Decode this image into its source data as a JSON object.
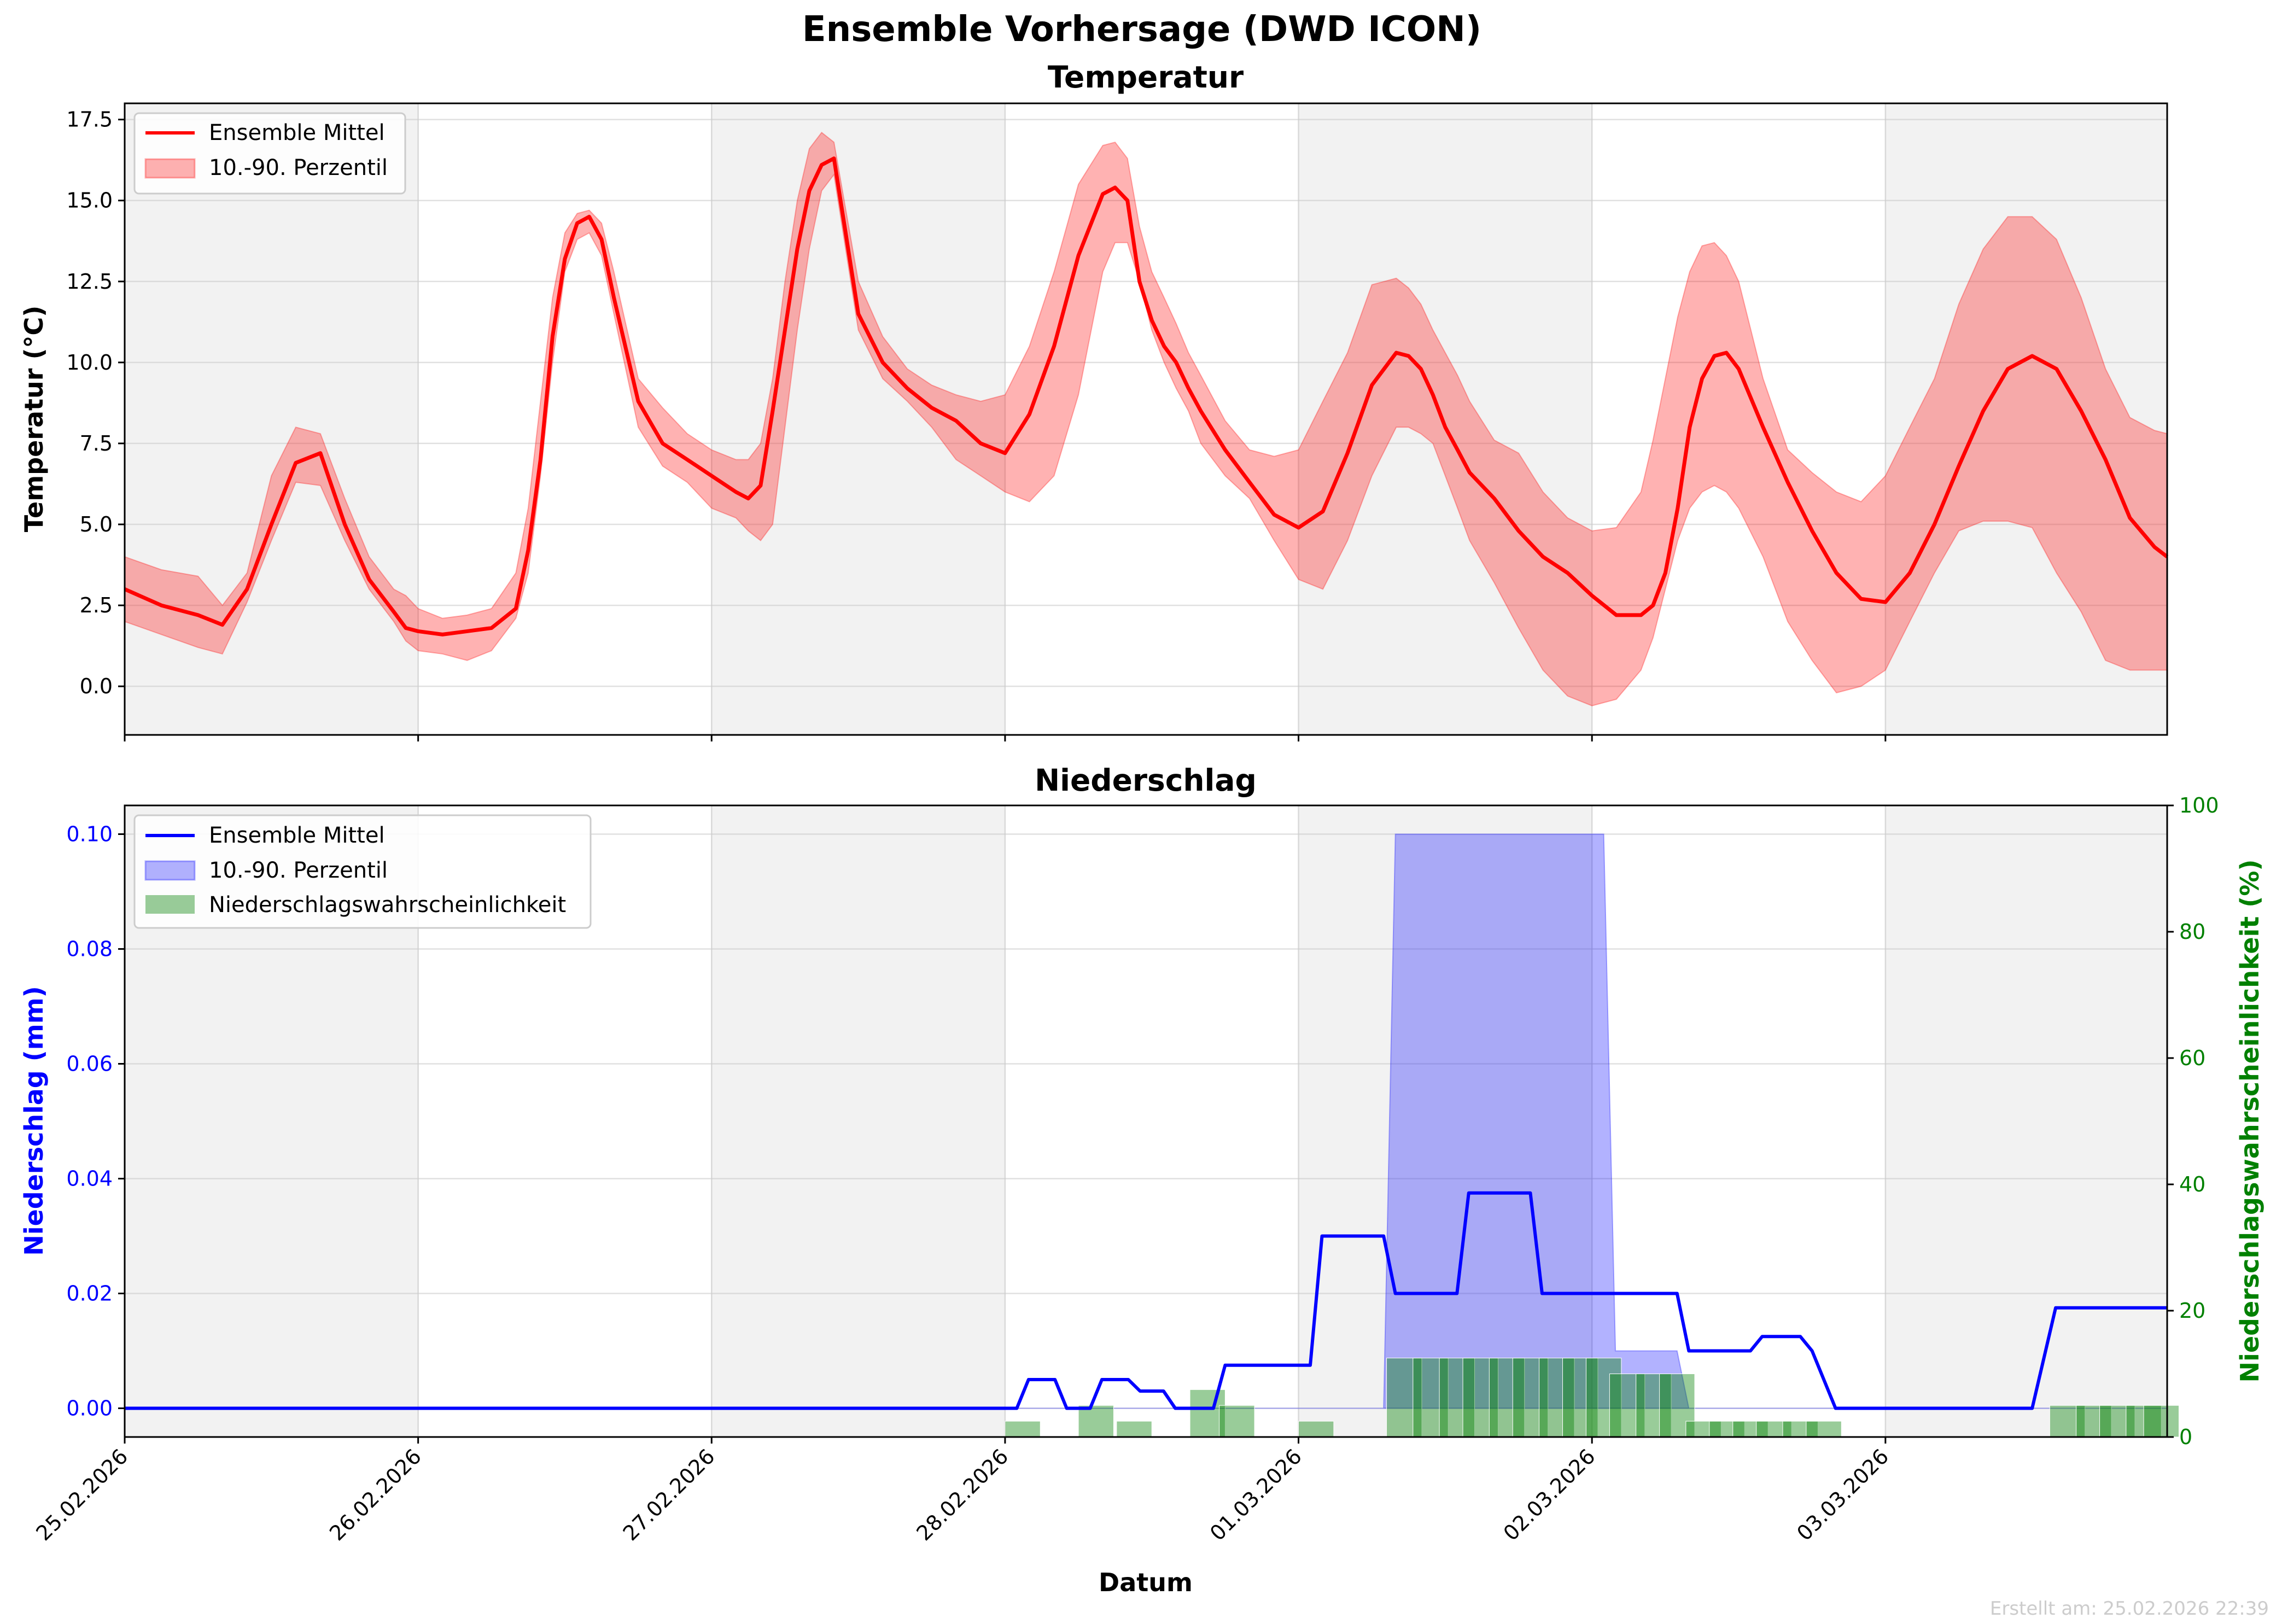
{
  "suptitle": "Ensemble Vorhersage (DWD ICON)",
  "footer": "Erstellt am: 25.02.2026 22:39",
  "colors": {
    "temp_line": "#ff0000",
    "temp_band": "#ff0000",
    "precip_line": "#0000ff",
    "precip_band": "#0000ff",
    "prob_bars": "#008000",
    "shade": "#f2f2f2",
    "grid": "#cccccc"
  },
  "chart_data": [
    {
      "type": "line",
      "title": "Temperatur",
      "xlabel": "",
      "ylabel": "Temperatur (°C)",
      "x_unit": "days since 25.02.2026 00:00",
      "xlim": [
        0,
        6.96
      ],
      "ylim": [
        -1.5,
        18.0
      ],
      "yticks": [
        0.0,
        2.5,
        5.0,
        7.5,
        10.0,
        12.5,
        15.0,
        17.5
      ],
      "grid": true,
      "legend": "top-left",
      "legend_entries": [
        "Ensemble Mittel",
        "10.-90. Perzentil"
      ],
      "series": [
        {
          "name": "Ensemble Mittel",
          "x": [
            0,
            0.125,
            0.25,
            0.333,
            0.417,
            0.5,
            0.583,
            0.667,
            0.75,
            0.833,
            0.917,
            0.958,
            1.0,
            1.083,
            1.167,
            1.25,
            1.333,
            1.375,
            1.417,
            1.458,
            1.5,
            1.542,
            1.583,
            1.625,
            1.667,
            1.75,
            1.833,
            1.917,
            2.0,
            2.083,
            2.125,
            2.167,
            2.208,
            2.25,
            2.292,
            2.333,
            2.375,
            2.417,
            2.5,
            2.583,
            2.667,
            2.75,
            2.833,
            2.917,
            3.0,
            3.083,
            3.167,
            3.25,
            3.333,
            3.375,
            3.417,
            3.458,
            3.5,
            3.542,
            3.583,
            3.625,
            3.667,
            3.75,
            3.833,
            3.917,
            4.0,
            4.083,
            4.167,
            4.25,
            4.333,
            4.375,
            4.417,
            4.458,
            4.5,
            4.542,
            4.583,
            4.667,
            4.75,
            4.833,
            4.917,
            5.0,
            5.083,
            5.167,
            5.208,
            5.25,
            5.292,
            5.333,
            5.375,
            5.417,
            5.458,
            5.5,
            5.583,
            5.667,
            5.75,
            5.833,
            5.917,
            6.0,
            6.083,
            6.167,
            6.25,
            6.333,
            6.417,
            6.5,
            6.583,
            6.667,
            6.75,
            6.833,
            6.917,
            6.96
          ],
          "values": [
            3.0,
            2.5,
            2.2,
            1.9,
            3.0,
            5.0,
            6.9,
            7.2,
            5.0,
            3.3,
            2.3,
            1.8,
            1.7,
            1.6,
            1.7,
            1.8,
            2.4,
            4.2,
            7.0,
            10.8,
            13.2,
            14.3,
            14.5,
            13.8,
            12.0,
            8.8,
            7.5,
            7.0,
            6.5,
            6.0,
            5.8,
            6.2,
            8.5,
            11.0,
            13.5,
            15.3,
            16.1,
            16.3,
            11.5,
            10.0,
            9.2,
            8.6,
            8.2,
            7.5,
            7.2,
            8.4,
            10.5,
            13.3,
            15.2,
            15.4,
            15.0,
            12.5,
            11.3,
            10.5,
            10.0,
            9.2,
            8.5,
            7.3,
            6.3,
            5.3,
            4.9,
            5.4,
            7.2,
            9.3,
            10.3,
            10.2,
            9.8,
            9.0,
            8.0,
            7.3,
            6.6,
            5.8,
            4.8,
            4.0,
            3.5,
            2.8,
            2.2,
            2.2,
            2.5,
            3.5,
            5.5,
            8.0,
            9.5,
            10.2,
            10.3,
            9.8,
            8.0,
            6.3,
            4.8,
            3.5,
            2.7,
            2.6,
            3.5,
            5.0,
            6.8,
            8.5,
            9.8,
            10.2,
            9.8,
            8.5,
            7.0,
            5.2,
            4.3,
            4.0
          ]
        },
        {
          "name": "10.-90. Perzentil",
          "x": [
            0,
            0.125,
            0.25,
            0.333,
            0.417,
            0.5,
            0.583,
            0.667,
            0.75,
            0.833,
            0.917,
            0.958,
            1.0,
            1.083,
            1.167,
            1.25,
            1.333,
            1.375,
            1.417,
            1.458,
            1.5,
            1.542,
            1.583,
            1.625,
            1.667,
            1.75,
            1.833,
            1.917,
            2.0,
            2.083,
            2.125,
            2.167,
            2.208,
            2.25,
            2.292,
            2.333,
            2.375,
            2.417,
            2.5,
            2.583,
            2.667,
            2.75,
            2.833,
            2.917,
            3.0,
            3.083,
            3.167,
            3.25,
            3.333,
            3.375,
            3.417,
            3.458,
            3.5,
            3.542,
            3.583,
            3.625,
            3.667,
            3.75,
            3.833,
            3.917,
            4.0,
            4.083,
            4.167,
            4.25,
            4.333,
            4.375,
            4.417,
            4.458,
            4.5,
            4.542,
            4.583,
            4.667,
            4.75,
            4.833,
            4.917,
            5.0,
            5.083,
            5.167,
            5.208,
            5.25,
            5.292,
            5.333,
            5.375,
            5.417,
            5.458,
            5.5,
            5.583,
            5.667,
            5.75,
            5.833,
            5.917,
            6.0,
            6.083,
            6.167,
            6.25,
            6.333,
            6.417,
            6.5,
            6.583,
            6.667,
            6.75,
            6.833,
            6.917,
            6.96
          ],
          "low": [
            2.0,
            1.6,
            1.2,
            1.0,
            2.6,
            4.5,
            6.3,
            6.2,
            4.5,
            3.0,
            2.0,
            1.4,
            1.1,
            1.0,
            0.8,
            1.1,
            2.1,
            3.5,
            6.5,
            10.0,
            12.8,
            13.8,
            14.0,
            13.3,
            11.5,
            8.0,
            6.8,
            6.3,
            5.5,
            5.2,
            4.8,
            4.5,
            5.0,
            8.0,
            11.0,
            13.5,
            15.3,
            15.8,
            11.0,
            9.5,
            8.8,
            8.0,
            7.0,
            6.5,
            6.0,
            5.7,
            6.5,
            9.0,
            12.8,
            13.7,
            13.7,
            12.5,
            11.0,
            10.0,
            9.2,
            8.5,
            7.5,
            6.5,
            5.8,
            4.5,
            3.3,
            3.0,
            4.5,
            6.5,
            8.0,
            8.0,
            7.8,
            7.5,
            6.5,
            5.5,
            4.5,
            3.2,
            1.8,
            0.5,
            -0.3,
            -0.6,
            -0.4,
            0.5,
            1.5,
            3.0,
            4.5,
            5.5,
            6.0,
            6.2,
            6.0,
            5.5,
            4.0,
            2.0,
            0.8,
            -0.2,
            0.0,
            0.5,
            2.0,
            3.5,
            4.8,
            5.1,
            5.1,
            4.9,
            3.5,
            2.3,
            0.8,
            0.5,
            0.5,
            0.5
          ],
          "high": [
            4.0,
            3.6,
            3.4,
            2.5,
            3.5,
            6.5,
            8.0,
            7.8,
            5.8,
            4.0,
            3.0,
            2.8,
            2.4,
            2.1,
            2.2,
            2.4,
            3.5,
            5.5,
            8.8,
            12.0,
            14.0,
            14.6,
            14.7,
            14.3,
            12.8,
            9.5,
            8.6,
            7.8,
            7.3,
            7.0,
            7.0,
            7.5,
            9.5,
            12.5,
            15.0,
            16.6,
            17.1,
            16.8,
            12.5,
            10.8,
            9.8,
            9.3,
            9.0,
            8.8,
            9.0,
            10.5,
            12.8,
            15.5,
            16.7,
            16.8,
            16.3,
            14.2,
            12.8,
            12.0,
            11.2,
            10.3,
            9.6,
            8.2,
            7.3,
            7.1,
            7.3,
            8.8,
            10.3,
            12.4,
            12.6,
            12.3,
            11.8,
            11.0,
            10.3,
            9.6,
            8.8,
            7.6,
            7.2,
            6.0,
            5.2,
            4.8,
            4.9,
            6.0,
            7.6,
            9.5,
            11.4,
            12.8,
            13.6,
            13.7,
            13.3,
            12.5,
            9.5,
            7.3,
            6.6,
            6.0,
            5.7,
            6.5,
            8.0,
            9.5,
            11.8,
            13.5,
            14.5,
            14.5,
            13.8,
            12.0,
            9.8,
            8.3,
            7.9,
            7.8
          ]
        }
      ]
    },
    {
      "type": "line",
      "title": "Niederschlag",
      "xlabel": "Datum",
      "ylabel": "Niederschlag (mm)",
      "ylabel_right": "Niederschlagswahrscheinlichkeit (%)",
      "x_unit": "days since 25.02.2026 00:00",
      "xlim": [
        0,
        6.96
      ],
      "ylim": [
        -0.005,
        0.105
      ],
      "ylim_right": [
        0,
        100
      ],
      "yticks": [
        0.0,
        0.02,
        0.04,
        0.06,
        0.08,
        0.1
      ],
      "ytick_labels": [
        "0.00",
        "0.02",
        "0.04",
        "0.06",
        "0.08",
        "0.10"
      ],
      "yticks_right": [
        0,
        20,
        40,
        60,
        80,
        100
      ],
      "xticks": [
        0,
        1,
        2,
        3,
        4,
        5,
        6
      ],
      "xtick_labels": [
        "25.02.2026",
        "26.02.2026",
        "27.02.2026",
        "28.02.2026",
        "01.03.2026",
        "02.03.2026",
        "03.03.2026"
      ],
      "grid": true,
      "legend": "top-left",
      "legend_entries": [
        "Ensemble Mittel",
        "10.-90. Perzentil",
        "Niederschlagswahrscheinlichkeit"
      ],
      "series": [
        {
          "name": "Ensemble Mittel",
          "x": [
            0,
            3.04,
            3.08,
            3.17,
            3.21,
            3.29,
            3.33,
            3.42,
            3.46,
            3.5,
            3.54,
            3.58,
            3.62,
            3.71,
            3.75,
            3.79,
            3.83,
            4.04,
            4.08,
            4.29,
            4.33,
            4.54,
            4.58,
            4.79,
            4.83,
            5.04,
            5.08,
            5.29,
            5.33,
            5.33,
            5.54,
            5.58,
            5.67,
            5.71,
            5.75,
            5.83,
            6.0,
            6.5,
            6.58,
            6.96
          ],
          "values": [
            0,
            0,
            0.005,
            0.005,
            0,
            0,
            0.005,
            0.005,
            0.003,
            0.003,
            0.003,
            0,
            0,
            0,
            0.0075,
            0.0075,
            0.0075,
            0.0075,
            0.03,
            0.03,
            0.02,
            0.02,
            0.0375,
            0.0375,
            0.02,
            0.02,
            0.02,
            0.02,
            0.01,
            0.01,
            0.01,
            0.0125,
            0.0125,
            0.0125,
            0.01,
            0,
            0,
            0,
            0.0175,
            0.0175
          ]
        },
        {
          "name": "10.-90. Perzentil",
          "x": [
            0,
            4.29,
            4.33,
            5.04,
            5.08,
            5.29,
            5.33,
            6.96
          ],
          "low": [
            0,
            0,
            0,
            0,
            0,
            0,
            0,
            0
          ],
          "high": [
            0,
            0,
            0.1,
            0.1,
            0.01,
            0.01,
            0,
            0
          ]
        },
        {
          "name": "Niederschlagswahrscheinlichkeit",
          "type": "bar",
          "x": [
            3.06,
            3.31,
            3.44,
            3.69,
            3.79,
            4.06,
            4.36,
            4.45,
            4.54,
            4.62,
            4.71,
            4.79,
            4.88,
            4.96,
            5.04,
            5.12,
            5.21,
            5.29,
            5.38,
            5.46,
            5.54,
            5.62,
            5.71,
            5.79,
            6.62,
            6.71,
            6.79,
            6.88,
            6.94
          ],
          "width": 0.12,
          "values": [
            2.5,
            5,
            2.5,
            7.5,
            5,
            2.5,
            12.5,
            12.5,
            12.5,
            12.5,
            12.5,
            12.5,
            12.5,
            12.5,
            12.5,
            10,
            10,
            10,
            2.5,
            2.5,
            2.5,
            2.5,
            2.5,
            2.5,
            5,
            5,
            5,
            5,
            5
          ]
        }
      ]
    }
  ]
}
